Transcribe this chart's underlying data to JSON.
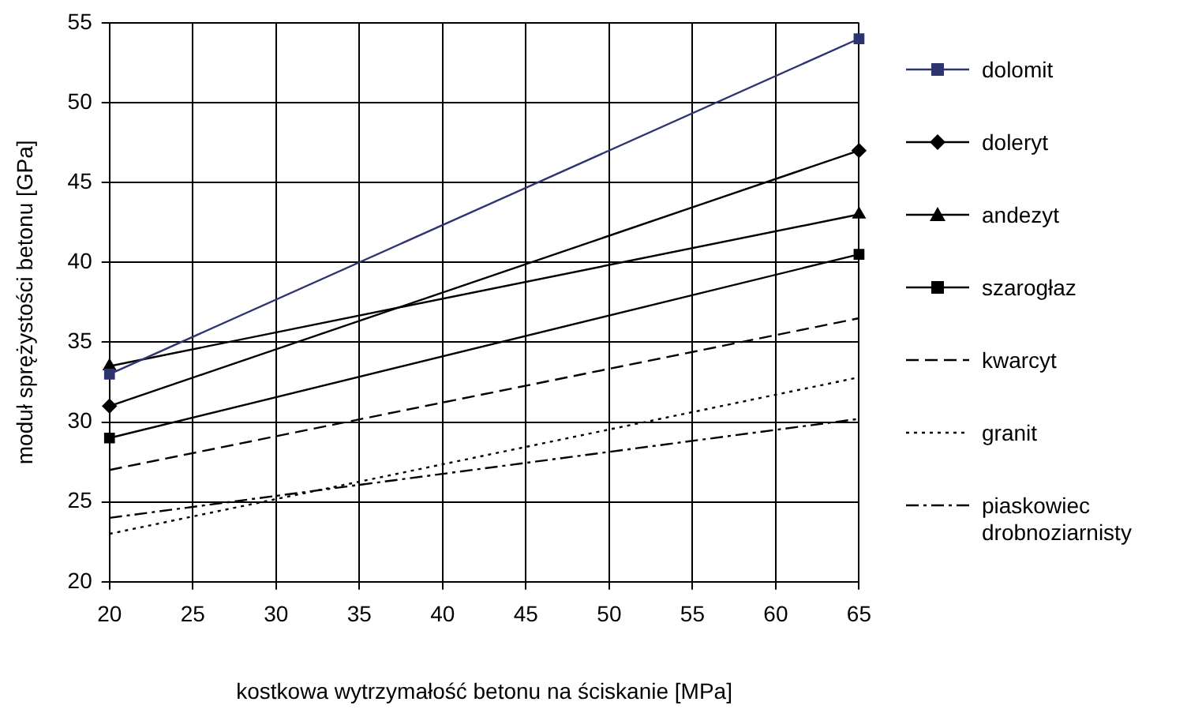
{
  "chart_data": {
    "type": "line",
    "xlabel": "kostkowa wytrzymałość betonu na ściskanie [MPa]",
    "ylabel": "moduł sprężystości betonu [GPa]",
    "x": [
      20,
      65
    ],
    "xlim": [
      20,
      65
    ],
    "xticks": [
      20,
      25,
      30,
      35,
      40,
      45,
      50,
      55,
      60,
      65
    ],
    "ylim": [
      20,
      55
    ],
    "yticks": [
      20,
      25,
      30,
      35,
      40,
      45,
      50,
      55
    ],
    "grid": true,
    "legend": "right",
    "series": [
      {
        "name": "dolomit",
        "color": "#2e3470",
        "values": [
          33,
          54
        ],
        "marker": "square",
        "line_style": "solid"
      },
      {
        "name": "doleryt",
        "color": "#000000",
        "values": [
          31,
          47
        ],
        "marker": "diamond",
        "line_style": "solid"
      },
      {
        "name": "andezyt",
        "color": "#000000",
        "values": [
          33.5,
          43
        ],
        "marker": "triangle",
        "line_style": "solid"
      },
      {
        "name": "szarogłaz",
        "color": "#000000",
        "values": [
          29,
          40.5
        ],
        "marker": "square",
        "line_style": "solid"
      },
      {
        "name": "kwarcyt",
        "color": "#000000",
        "values": [
          27,
          36.5
        ],
        "marker": "none",
        "line_style": "dashed"
      },
      {
        "name": "granit",
        "color": "#000000",
        "values": [
          23,
          32.8
        ],
        "marker": "none",
        "line_style": "dotted"
      },
      {
        "name": "piaskowiec drobnoziarnisty",
        "color": "#000000",
        "values": [
          24,
          30.2
        ],
        "marker": "none",
        "line_style": "dashdot"
      }
    ]
  }
}
